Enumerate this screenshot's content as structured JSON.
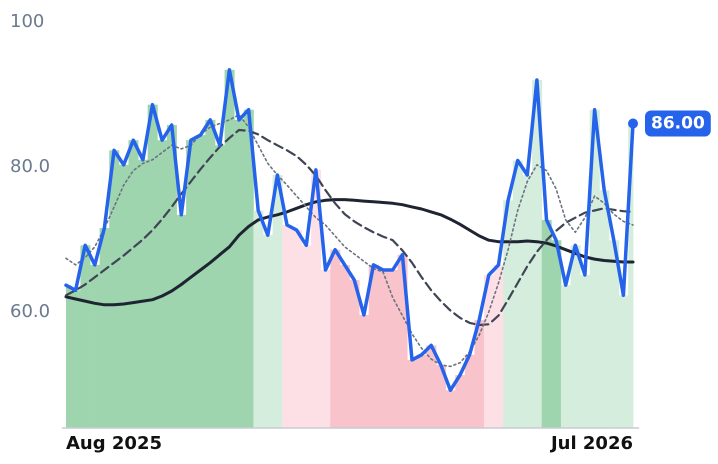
{
  "chart_data": {
    "type": "line",
    "categories": [
      "Aug 2025",
      null,
      null,
      null,
      null,
      null,
      null,
      null,
      null,
      null,
      null,
      null,
      null,
      null,
      null,
      null,
      null,
      null,
      null,
      null,
      null,
      null,
      null,
      null,
      null,
      null,
      null,
      null,
      null,
      null,
      null,
      null,
      null,
      null,
      null,
      null,
      null,
      null,
      null,
      null,
      null,
      null,
      null,
      null,
      null,
      null,
      null,
      null,
      null,
      null,
      null,
      null,
      null,
      null,
      null,
      null,
      null,
      null,
      null,
      "Jul 2026"
    ],
    "ylim": [
      44,
      100
    ],
    "yticks": [
      100,
      {
        "value": 80,
        "label": "80.0"
      },
      {
        "value": 60,
        "label": "60.0"
      }
    ],
    "grid": false,
    "series": [
      {
        "color": "#2563eb",
        "style": "solid",
        "width": 3.5,
        "values": [
          63.7,
          63.0,
          69.2,
          66.5,
          71.6,
          82.3,
          80.3,
          83.7,
          81.0,
          88.6,
          83.7,
          85.8,
          73.4,
          83.7,
          84.4,
          86.5,
          83.0,
          93.4,
          86.5,
          87.9,
          74.0,
          70.6,
          78.9,
          72.0,
          71.3,
          69.2,
          79.6,
          65.8,
          68.6,
          66.5,
          64.4,
          59.6,
          66.5,
          65.8,
          65.8,
          67.9,
          53.4,
          54.1,
          55.4,
          52.7,
          49.2,
          51.3,
          54.1,
          58.9,
          65.1,
          66.5,
          75.4,
          80.9,
          78.9,
          92.0,
          72.7,
          69.9,
          63.7,
          69.2,
          65.1,
          87.9,
          76.8,
          69.9,
          62.3,
          86
        ],
        "value_labels": [
          null,
          null,
          null,
          null,
          null,
          null,
          null,
          null,
          null,
          null,
          null,
          null,
          null,
          null,
          null,
          null,
          null,
          null,
          null,
          null,
          null,
          null,
          null,
          null,
          null,
          null,
          null,
          null,
          null,
          null,
          null,
          null,
          null,
          null,
          null,
          null,
          null,
          null,
          null,
          null,
          null,
          null,
          null,
          null,
          null,
          null,
          null,
          null,
          null,
          null,
          null,
          null,
          null,
          null,
          null,
          null,
          null,
          null,
          null,
          "86.00"
        ]
      },
      {
        "color": "#6b7280",
        "style": "dotted",
        "width": 1.6,
        "values": [
          67.4,
          66.5,
          67.5,
          69.0,
          71.5,
          74.5,
          77.5,
          79.5,
          80.5,
          81.0,
          82.0,
          83.0,
          82.5,
          83.0,
          84.5,
          85.5,
          86.0,
          86.5,
          87.2,
          85.5,
          83.0,
          80.5,
          78.9,
          77.5,
          76.0,
          74.5,
          73.0,
          72.0,
          70.5,
          69.0,
          68.0,
          67.0,
          66.0,
          65.5,
          62.0,
          59.5,
          57.0,
          55.0,
          53.5,
          52.7,
          52.5,
          53.0,
          54.5,
          56.8,
          60.0,
          64.0,
          68.6,
          74.0,
          78.0,
          80.3,
          79.5,
          77.0,
          72.7,
          71.0,
          73.0,
          76.0,
          75.0,
          73.5,
          72.5,
          72.0
        ]
      },
      {
        "color": "#3f4555",
        "style": "dashed",
        "width": 2.2,
        "values": [
          62.3,
          63.0,
          63.8,
          64.8,
          65.8,
          66.8,
          67.8,
          68.9,
          70.0,
          71.3,
          72.8,
          74.5,
          76.3,
          78.0,
          79.7,
          81.3,
          82.8,
          84.0,
          85.1,
          85.0,
          84.5,
          83.7,
          83.0,
          82.3,
          81.5,
          80.3,
          78.8,
          76.8,
          75.0,
          73.5,
          72.5,
          71.7,
          71.0,
          70.4,
          69.9,
          68.5,
          66.8,
          64.8,
          63.0,
          61.5,
          60.2,
          59.2,
          58.5,
          58.2,
          58.3,
          59.5,
          61.7,
          64.0,
          66.3,
          68.3,
          69.9,
          71.2,
          72.3,
          73.0,
          73.7,
          74.0,
          74.3,
          74.1,
          73.9,
          73.8
        ]
      },
      {
        "color": "#1f2433",
        "style": "solid",
        "width": 3,
        "values": [
          62.1,
          61.8,
          61.5,
          61.2,
          61.0,
          61.0,
          61.1,
          61.3,
          61.5,
          61.7,
          62.2,
          62.9,
          63.8,
          64.8,
          65.8,
          66.8,
          67.9,
          69.0,
          70.6,
          71.8,
          72.7,
          73.1,
          73.4,
          73.8,
          74.3,
          74.8,
          75.2,
          75.4,
          75.5,
          75.5,
          75.4,
          75.3,
          75.2,
          75.1,
          75.0,
          74.8,
          74.5,
          74.2,
          73.8,
          73.4,
          72.8,
          72.1,
          71.3,
          70.5,
          69.9,
          69.7,
          69.7,
          69.7,
          69.8,
          69.7,
          69.5,
          69.1,
          68.6,
          68.1,
          67.6,
          67.3,
          67.1,
          67.0,
          66.9,
          66.9
        ]
      }
    ],
    "area_colors": [
      "#9ed5ae",
      "#9ed5ae",
      "#9ed5ae",
      "#9ed5ae",
      "#9ed5ae",
      "#9ed5ae",
      "#9ed5ae",
      "#9ed5ae",
      "#9ed5ae",
      "#9ed5ae",
      "#9ed5ae",
      "#9ed5ae",
      "#9ed5ae",
      "#9ed5ae",
      "#9ed5ae",
      "#9ed5ae",
      "#9ed5ae",
      "#9ed5ae",
      "#9ed5ae",
      "#9ed5ae",
      "#d4eddd",
      "#d4eddd",
      "#d4eddd",
      "#fde0e5",
      "#fde0e5",
      "#fde0e5",
      "#fde0e5",
      "#fde0e5",
      "#f9c3cc",
      "#f9c3cc",
      "#f9c3cc",
      "#f9c3cc",
      "#f9c3cc",
      "#f9c3cc",
      "#f9c3cc",
      "#f9c3cc",
      "#f9c3cc",
      "#f9c3cc",
      "#f9c3cc",
      "#f9c3cc",
      "#f9c3cc",
      "#f9c3cc",
      "#f9c3cc",
      "#f9c3cc",
      "#fde0e5",
      "#fde0e5",
      "#d4eddd",
      "#d4eddd",
      "#d4eddd",
      "#d4eddd",
      "#9ed5ae",
      "#9ed5ae",
      "#d4eddd",
      "#d4eddd",
      "#d4eddd",
      "#d4eddd",
      "#d4eddd",
      "#d4eddd",
      "#d4eddd",
      "#d4eddd"
    ]
  }
}
